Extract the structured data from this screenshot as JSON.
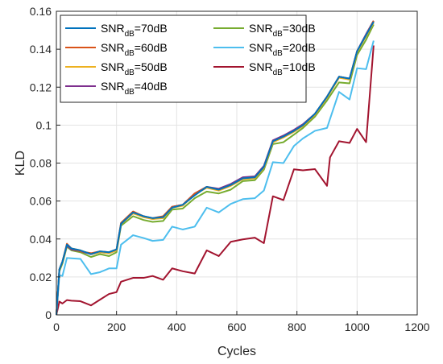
{
  "chart_data": {
    "type": "line",
    "xlabel": "Cycles",
    "ylabel": "KLD",
    "xlim": [
      0,
      1200
    ],
    "ylim": [
      0,
      0.16
    ],
    "xticks": [
      0,
      200,
      400,
      600,
      800,
      1000,
      1200
    ],
    "yticks": [
      0,
      0.02,
      0.04,
      0.06,
      0.08,
      0.1,
      0.12,
      0.14,
      0.16
    ],
    "xtick_labels": [
      "0",
      "200",
      "400",
      "600",
      "800",
      "1000",
      "1200"
    ],
    "ytick_labels": [
      "0",
      "0.02",
      "0.04",
      "0.06",
      "0.08",
      "0.1",
      "0.12",
      "0.14",
      "0.16"
    ],
    "grid": true,
    "legend_position": "top-left",
    "legend_columns": 2,
    "series": [
      {
        "name": "70dB",
        "color": "#0072BD",
        "x": [
          0,
          10,
          20,
          35,
          50,
          80,
          115,
          145,
          175,
          200,
          215,
          255,
          290,
          320,
          355,
          385,
          420,
          460,
          500,
          540,
          580,
          620,
          660,
          690,
          720,
          755,
          790,
          820,
          860,
          900,
          940,
          975,
          1000,
          1030,
          1055
        ],
        "y": [
          0.0,
          0.024,
          0.028,
          0.037,
          0.035,
          0.034,
          0.032,
          0.0335,
          0.033,
          0.0345,
          0.048,
          0.054,
          0.052,
          0.051,
          0.0515,
          0.0565,
          0.058,
          0.063,
          0.0675,
          0.066,
          0.0685,
          0.072,
          0.0725,
          0.078,
          0.0915,
          0.094,
          0.097,
          0.1,
          0.106,
          0.115,
          0.1255,
          0.1245,
          0.139,
          0.1475,
          0.1545
        ]
      },
      {
        "name": "60dB",
        "color": "#D95319",
        "x": [
          0,
          10,
          20,
          35,
          50,
          80,
          115,
          145,
          175,
          200,
          215,
          255,
          290,
          320,
          355,
          385,
          420,
          460,
          500,
          540,
          580,
          620,
          660,
          690,
          720,
          755,
          790,
          820,
          860,
          900,
          940,
          975,
          1000,
          1030,
          1055
        ],
        "y": [
          0.0,
          0.024,
          0.028,
          0.0375,
          0.035,
          0.0335,
          0.0325,
          0.0335,
          0.033,
          0.0345,
          0.0485,
          0.0545,
          0.052,
          0.051,
          0.052,
          0.057,
          0.058,
          0.064,
          0.0675,
          0.066,
          0.0685,
          0.072,
          0.0725,
          0.078,
          0.0915,
          0.094,
          0.097,
          0.1,
          0.106,
          0.115,
          0.1255,
          0.1245,
          0.139,
          0.1475,
          0.155
        ]
      },
      {
        "name": "50dB",
        "color": "#EDB120",
        "x": [
          0,
          10,
          20,
          35,
          50,
          80,
          115,
          145,
          175,
          200,
          215,
          255,
          290,
          320,
          355,
          385,
          420,
          460,
          500,
          540,
          580,
          620,
          660,
          690,
          720,
          755,
          790,
          820,
          860,
          900,
          940,
          975,
          1000,
          1030,
          1055
        ],
        "y": [
          0.0,
          0.024,
          0.028,
          0.037,
          0.035,
          0.034,
          0.032,
          0.033,
          0.0325,
          0.034,
          0.048,
          0.0535,
          0.0515,
          0.0505,
          0.051,
          0.0565,
          0.0575,
          0.0635,
          0.067,
          0.0655,
          0.068,
          0.0715,
          0.072,
          0.0775,
          0.091,
          0.0935,
          0.0965,
          0.0995,
          0.1055,
          0.1145,
          0.125,
          0.124,
          0.1385,
          0.147,
          0.154
        ]
      },
      {
        "name": "40dB",
        "color": "#7E2F8E",
        "x": [
          0,
          10,
          20,
          35,
          50,
          80,
          115,
          145,
          175,
          200,
          215,
          255,
          290,
          320,
          355,
          385,
          420,
          460,
          500,
          540,
          580,
          620,
          660,
          690,
          720,
          755,
          790,
          820,
          860,
          900,
          940,
          975,
          1000,
          1030,
          1055
        ],
        "y": [
          0.0,
          0.024,
          0.028,
          0.0365,
          0.0345,
          0.0335,
          0.032,
          0.033,
          0.0325,
          0.034,
          0.048,
          0.0535,
          0.052,
          0.0505,
          0.0515,
          0.057,
          0.058,
          0.064,
          0.0675,
          0.0665,
          0.069,
          0.0725,
          0.073,
          0.0785,
          0.092,
          0.0945,
          0.0975,
          0.1005,
          0.106,
          0.115,
          0.1255,
          0.1245,
          0.139,
          0.148,
          0.155
        ]
      },
      {
        "name": "30dB",
        "color": "#77AC30",
        "x": [
          0,
          10,
          20,
          35,
          50,
          80,
          115,
          145,
          175,
          200,
          215,
          255,
          290,
          320,
          355,
          385,
          420,
          460,
          500,
          540,
          580,
          620,
          660,
          690,
          720,
          755,
          790,
          820,
          860,
          900,
          940,
          975,
          1000,
          1030,
          1055
        ],
        "y": [
          0.0,
          0.023,
          0.027,
          0.036,
          0.034,
          0.033,
          0.0305,
          0.032,
          0.031,
          0.033,
          0.047,
          0.052,
          0.05,
          0.049,
          0.0495,
          0.0555,
          0.056,
          0.0615,
          0.065,
          0.064,
          0.066,
          0.0705,
          0.071,
          0.0765,
          0.09,
          0.091,
          0.095,
          0.0985,
          0.1045,
          0.113,
          0.1225,
          0.122,
          0.137,
          0.145,
          0.153
        ]
      },
      {
        "name": "20dB",
        "color": "#4DBEEE",
        "x": [
          0,
          10,
          20,
          35,
          50,
          80,
          115,
          145,
          175,
          200,
          215,
          255,
          290,
          320,
          355,
          385,
          420,
          460,
          500,
          540,
          580,
          620,
          660,
          690,
          720,
          755,
          790,
          820,
          860,
          900,
          940,
          975,
          1000,
          1030,
          1055
        ],
        "y": [
          0.0,
          0.021,
          0.0205,
          0.03,
          0.0298,
          0.0295,
          0.0215,
          0.0225,
          0.0245,
          0.0245,
          0.037,
          0.042,
          0.0405,
          0.039,
          0.0395,
          0.0465,
          0.045,
          0.0465,
          0.0565,
          0.054,
          0.0585,
          0.061,
          0.0615,
          0.0655,
          0.0805,
          0.08,
          0.089,
          0.093,
          0.097,
          0.0985,
          0.1175,
          0.1135,
          0.13,
          0.1295,
          0.1445
        ]
      },
      {
        "name": "10dB",
        "color": "#A2142F",
        "x": [
          0,
          10,
          20,
          35,
          50,
          80,
          115,
          145,
          175,
          200,
          215,
          255,
          290,
          320,
          355,
          385,
          420,
          460,
          500,
          540,
          580,
          620,
          660,
          690,
          720,
          755,
          790,
          820,
          860,
          900,
          910,
          940,
          975,
          1000,
          1030,
          1055
        ],
        "y": [
          0.0,
          0.007,
          0.006,
          0.0078,
          0.0075,
          0.0072,
          0.005,
          0.008,
          0.011,
          0.012,
          0.0175,
          0.0195,
          0.0195,
          0.0205,
          0.0185,
          0.0245,
          0.023,
          0.0218,
          0.034,
          0.031,
          0.0385,
          0.0398,
          0.0407,
          0.0378,
          0.0625,
          0.0605,
          0.0767,
          0.0762,
          0.0768,
          0.068,
          0.083,
          0.0915,
          0.0906,
          0.098,
          0.091,
          0.142
        ]
      }
    ]
  },
  "legend": {
    "prefix": "SNR",
    "subscript": "dB",
    "entries": [
      "=70dB",
      "=30dB",
      "=60dB",
      "=20dB",
      "=50dB",
      "=10dB",
      "=40dB"
    ]
  }
}
